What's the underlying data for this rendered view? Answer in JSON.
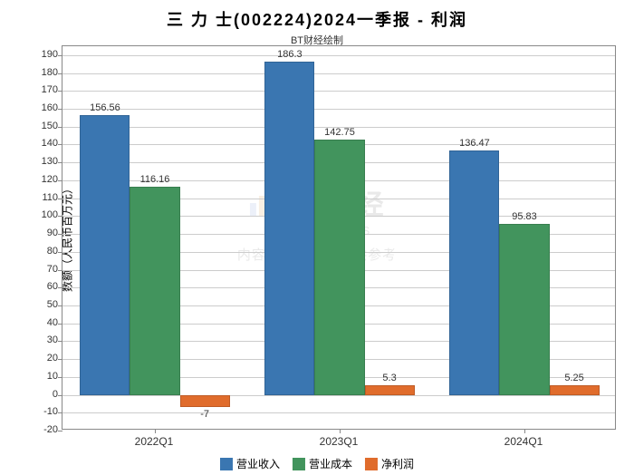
{
  "chart": {
    "type": "bar",
    "title": "三 力 士(002224)2024一季报 - 利润",
    "subtitle": "BT财经绘制",
    "ylabel": "数额（人民币百万元）",
    "ylim": [
      -20,
      195
    ],
    "ytick_step": 10,
    "background_color": "#ffffff",
    "grid_color": "#cccccc",
    "border_color": "#888888",
    "title_fontsize": 18,
    "label_fontsize": 12,
    "categories": [
      "2022Q1",
      "2023Q1",
      "2024Q1"
    ],
    "series": [
      {
        "name": "营业收入",
        "color": "#3a76b1",
        "values": [
          156.56,
          186.3,
          136.47
        ]
      },
      {
        "name": "营业成本",
        "color": "#42945d",
        "values": [
          116.16,
          142.75,
          95.83
        ]
      },
      {
        "name": "净利润",
        "color": "#e06c2c",
        "values": [
          -7,
          5.3,
          5.25
        ]
      }
    ],
    "bar_width_ratio": 0.27,
    "group_gap_ratio": 0.18
  },
  "watermark": {
    "main": "BT财经",
    "sub": "BUSINESSTIMES",
    "sub2": "内容由AI生成，仅供参考",
    "logo_colors": [
      "#9aaee0",
      "#e0a86a",
      "#7a8fc7",
      "#c85a3a"
    ],
    "logo_heights": [
      14,
      22,
      26,
      30
    ]
  }
}
